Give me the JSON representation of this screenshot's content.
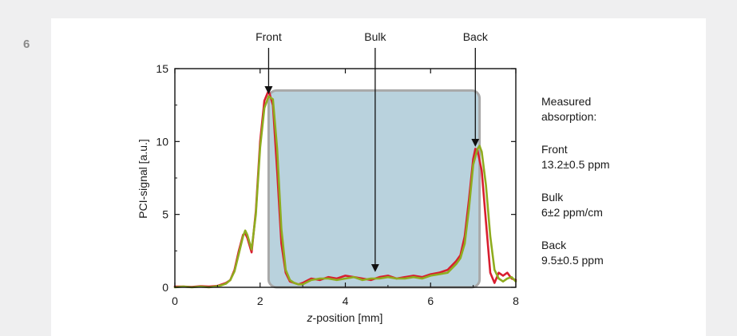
{
  "figure_number": "6",
  "colors": {
    "panel": "#ffffff",
    "page": "#efeff0",
    "bulk_region": "#b9d2dd",
    "bulk_region_border": "#a9a9a9",
    "series_red": "#d81e2f",
    "series_green": "#8fac1f"
  },
  "chart_data": {
    "type": "line",
    "title": "",
    "xlabel_italic": "z",
    "xlabel_rest": "-position [mm]",
    "ylabel": "PCI-signal [a.u.]",
    "xlim": [
      0,
      8
    ],
    "ylim": [
      0,
      15
    ],
    "x_ticks": [
      0,
      2,
      4,
      6,
      8
    ],
    "y_ticks": [
      0,
      5,
      10,
      15
    ],
    "grid": false,
    "shaded_region": {
      "x": [
        2.2,
        7.15
      ],
      "y": [
        0,
        13.5
      ],
      "label": "Bulk"
    },
    "annotations": [
      {
        "label": "Front",
        "x": 2.2,
        "y": 13.3
      },
      {
        "label": "Bulk",
        "x": 4.7,
        "y": 1.1
      },
      {
        "label": "Back",
        "x": 7.05,
        "y": 9.7
      }
    ],
    "series": [
      {
        "color": "#d81e2f",
        "x": [
          0,
          0.2,
          0.4,
          0.6,
          0.8,
          1.0,
          1.1,
          1.2,
          1.3,
          1.4,
          1.5,
          1.6,
          1.65,
          1.7,
          1.8,
          1.9,
          2.0,
          2.1,
          2.2,
          2.3,
          2.4,
          2.5,
          2.6,
          2.7,
          2.8,
          2.9,
          3.0,
          3.2,
          3.4,
          3.6,
          3.8,
          4.0,
          4.2,
          4.4,
          4.6,
          4.8,
          5.0,
          5.2,
          5.4,
          5.6,
          5.8,
          6.0,
          6.2,
          6.4,
          6.6,
          6.7,
          6.8,
          6.9,
          7.0,
          7.05,
          7.1,
          7.2,
          7.3,
          7.4,
          7.5,
          7.6,
          7.7,
          7.8,
          7.9,
          8.0
        ],
        "values": [
          0.05,
          0.05,
          0.02,
          0.08,
          0.05,
          0.1,
          0.2,
          0.3,
          0.5,
          1.2,
          2.5,
          3.6,
          3.7,
          3.4,
          2.4,
          5.2,
          10.0,
          12.8,
          13.5,
          12.5,
          8.0,
          3.0,
          1.0,
          0.4,
          0.3,
          0.2,
          0.3,
          0.6,
          0.5,
          0.7,
          0.6,
          0.8,
          0.7,
          0.6,
          0.5,
          0.7,
          0.8,
          0.6,
          0.7,
          0.8,
          0.7,
          0.9,
          1.0,
          1.2,
          1.8,
          2.2,
          3.5,
          6.0,
          8.8,
          9.5,
          9.4,
          8.0,
          4.5,
          1.0,
          0.3,
          1.0,
          0.8,
          1.0,
          0.6,
          0.5
        ]
      },
      {
        "color": "#8fac1f",
        "x": [
          0,
          0.2,
          0.4,
          0.6,
          0.8,
          1.0,
          1.1,
          1.2,
          1.3,
          1.4,
          1.5,
          1.6,
          1.65,
          1.7,
          1.8,
          1.9,
          2.0,
          2.1,
          2.2,
          2.3,
          2.4,
          2.5,
          2.6,
          2.7,
          2.8,
          2.9,
          3.0,
          3.2,
          3.4,
          3.6,
          3.8,
          4.0,
          4.2,
          4.4,
          4.6,
          4.8,
          5.0,
          5.2,
          5.4,
          5.6,
          5.8,
          6.0,
          6.2,
          6.4,
          6.6,
          6.7,
          6.8,
          6.9,
          7.0,
          7.1,
          7.15,
          7.2,
          7.3,
          7.4,
          7.5,
          7.6,
          7.7,
          7.8,
          7.9,
          8.0
        ],
        "values": [
          0.0,
          0.05,
          0.0,
          0.05,
          0.0,
          0.08,
          0.15,
          0.25,
          0.5,
          1.1,
          2.3,
          3.5,
          3.9,
          3.6,
          2.6,
          5.0,
          9.6,
          12.3,
          13.1,
          12.9,
          9.5,
          4.0,
          1.2,
          0.5,
          0.3,
          0.2,
          0.2,
          0.5,
          0.6,
          0.6,
          0.5,
          0.6,
          0.7,
          0.5,
          0.6,
          0.6,
          0.7,
          0.6,
          0.6,
          0.7,
          0.6,
          0.8,
          0.9,
          1.0,
          1.6,
          2.0,
          3.0,
          5.4,
          8.4,
          9.5,
          9.7,
          9.3,
          7.0,
          3.5,
          1.2,
          0.6,
          0.4,
          0.6,
          0.7,
          0.4
        ]
      }
    ]
  },
  "side_notes": {
    "heading_line1": "Measured",
    "heading_line2": "absorption:",
    "front_label": "Front",
    "front_value": "13.2±0.5 ppm",
    "bulk_label": "Bulk",
    "bulk_value": "6±2 ppm/cm",
    "back_label": "Back",
    "back_value": "9.5±0.5 ppm"
  }
}
